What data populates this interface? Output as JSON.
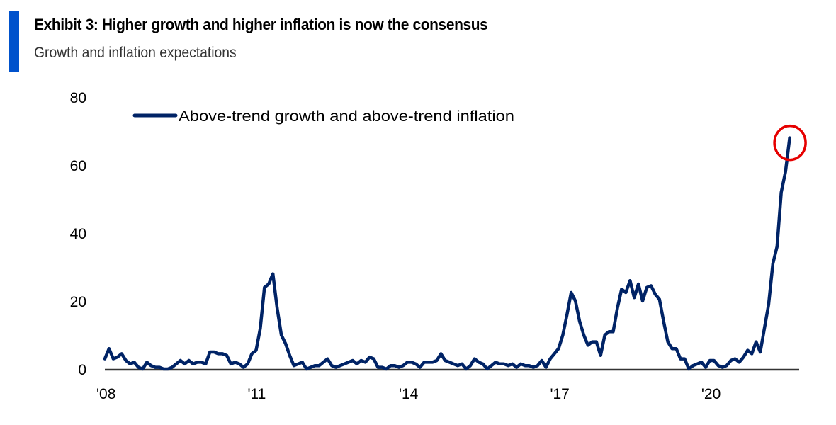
{
  "header": {
    "title": "Exhibit 3: Higher growth and higher inflation is now the consensus",
    "subtitle": "Growth and inflation expectations",
    "accent_color": "#0052CC"
  },
  "chart_data": {
    "type": "line",
    "title": "Exhibit 3: Higher growth and higher inflation is now the consensus",
    "subtitle": "Growth and inflation expectations",
    "xlabel": "",
    "ylabel": "",
    "ylim": [
      0,
      80
    ],
    "yticks": [
      0,
      20,
      40,
      60,
      80
    ],
    "ytick_labels": [
      "0",
      "20",
      "40",
      "60",
      "80"
    ],
    "xlim_start": "2008-01",
    "xlim_end": "2021-12",
    "xticks": [
      {
        "date": "2008-01",
        "label": "'08"
      },
      {
        "date": "2011-01",
        "label": "'11"
      },
      {
        "date": "2014-01",
        "label": "'14"
      },
      {
        "date": "2017-01",
        "label": "'17"
      },
      {
        "date": "2020-01",
        "label": "'20"
      }
    ],
    "grid": false,
    "legend": {
      "position": "top-left"
    },
    "frequency": "monthly",
    "start": "2008-01",
    "series": [
      {
        "name": "Above-trend growth and above-trend inflation",
        "color": "#002366",
        "values": [
          3,
          6,
          3,
          3.5,
          4.5,
          2.5,
          1.5,
          2,
          0.5,
          0,
          2,
          1,
          0.5,
          0.5,
          0,
          0,
          0.5,
          1.5,
          2.5,
          1.5,
          2.5,
          1.5,
          2,
          2,
          1.5,
          5,
          5,
          4.5,
          4.5,
          4,
          1.5,
          2,
          1.5,
          0.5,
          1.5,
          4.5,
          5.5,
          12,
          24,
          25,
          28,
          18,
          10,
          7.5,
          4,
          1,
          1.5,
          2,
          0,
          0.5,
          1,
          1,
          2,
          3,
          1,
          0.5,
          1,
          1.5,
          2,
          2.5,
          1.5,
          2.5,
          2,
          3.5,
          3,
          0.5,
          0.5,
          0,
          1,
          1,
          0.5,
          1,
          2,
          2,
          1.5,
          0.5,
          2,
          2,
          2,
          2.5,
          4.5,
          2.5,
          2,
          1.5,
          1,
          1.5,
          0,
          1,
          3,
          2,
          1.5,
          0,
          1,
          2,
          1.5,
          1.5,
          1,
          1.5,
          0.5,
          1.5,
          1,
          1,
          0.5,
          1,
          2.5,
          0.5,
          3,
          4.5,
          6,
          10,
          16,
          22.5,
          20,
          14,
          10,
          7,
          8,
          8,
          4,
          10,
          11,
          11,
          18,
          23.5,
          22.5,
          26,
          21,
          25,
          20,
          24,
          24.5,
          22,
          20.5,
          14,
          8,
          6,
          6,
          3,
          3,
          0,
          1,
          1.5,
          2,
          0.5,
          2.5,
          2.5,
          1,
          0.5,
          1,
          2.5,
          3,
          2,
          3.5,
          5.5,
          4.5,
          8,
          5,
          12,
          19,
          31,
          36,
          52,
          58,
          68
        ]
      }
    ],
    "annotations": [
      {
        "type": "circle",
        "target": "last-point",
        "color": "#E60000",
        "description": "Red circle highlighting the latest reading (~68)"
      }
    ]
  }
}
